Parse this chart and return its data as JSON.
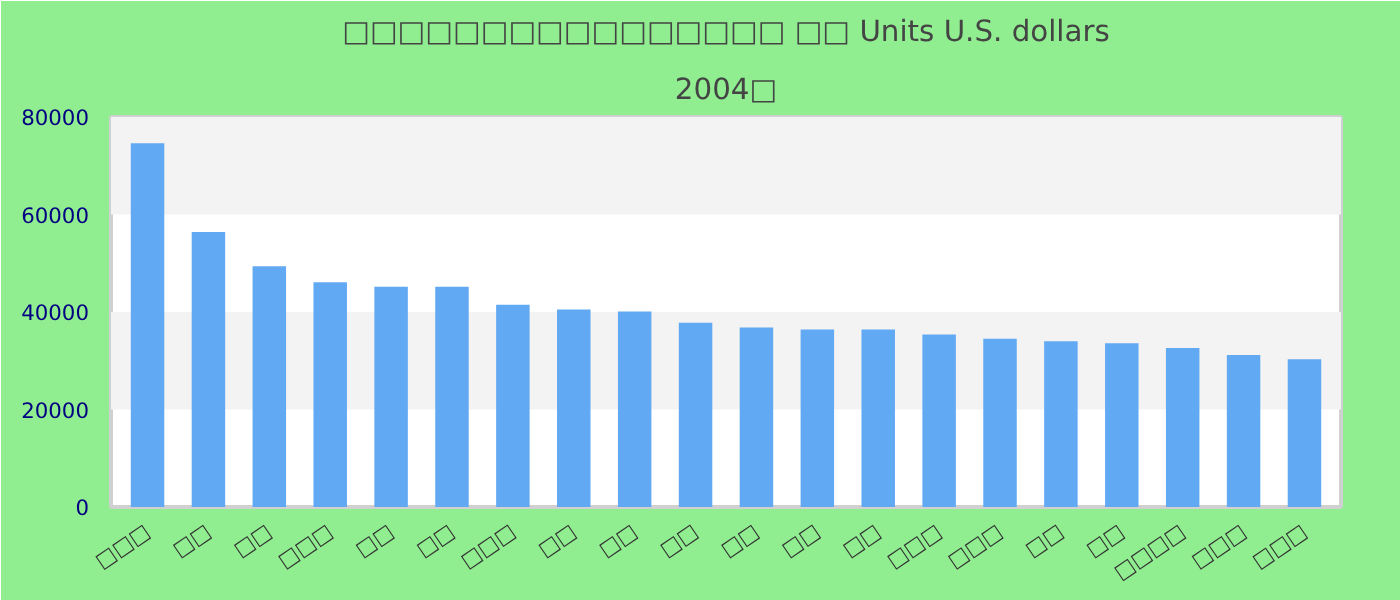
{
  "chart_data": {
    "type": "bar",
    "title": "□□□□□□□□□□□□□□□□ □□ Units U.S. dollars",
    "subtitle": "2004□",
    "categories": [
      "□□□",
      "□□",
      "□□",
      "□□□",
      "□□",
      "□□",
      "□□□",
      "□□",
      "□□",
      "□□",
      "□□",
      "□□",
      "□□",
      "□□□",
      "□□□",
      "□□",
      "□□",
      "□□□□",
      "□□□",
      "□□□"
    ],
    "values": [
      74600,
      56400,
      49400,
      46100,
      45200,
      45200,
      41500,
      40500,
      40100,
      37800,
      36800,
      36400,
      36400,
      35400,
      34500,
      34000,
      33600,
      32600,
      31200,
      30300
    ],
    "color": "#62a9f4",
    "ylim": [
      0,
      80000
    ],
    "yticks": [
      0,
      20000,
      40000,
      60000,
      80000
    ],
    "bands": [
      {
        "axis": "y",
        "from": 20000,
        "to": 40000,
        "color": "#f3f3f3"
      },
      {
        "axis": "y",
        "from": 60000,
        "to": 80000,
        "color": "#f3f3f3"
      }
    ]
  }
}
